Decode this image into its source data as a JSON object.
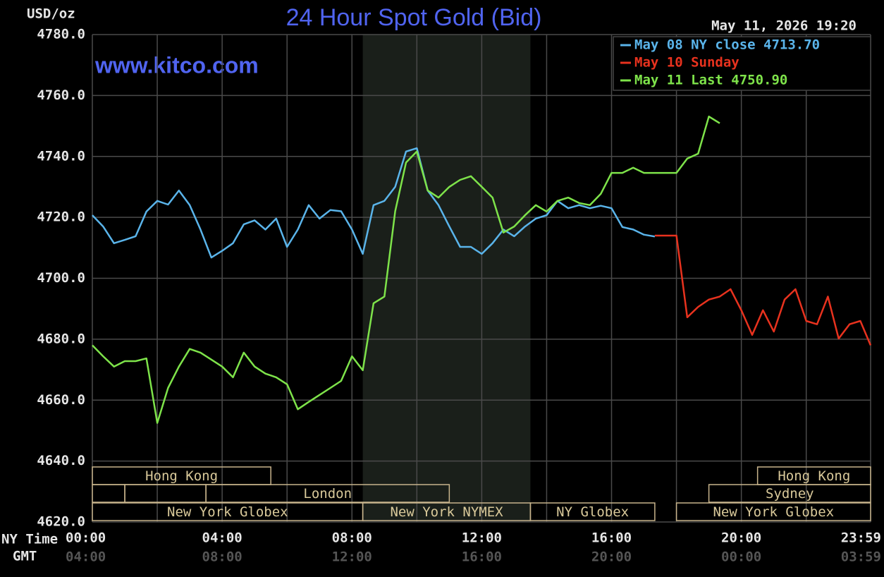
{
  "chart_data": {
    "type": "line",
    "title": "24 Hour Spot Gold (Bid)",
    "y_label": "USD/oz",
    "timestamp": "May 11, 2026 19:20",
    "watermark": "www.kitco.com",
    "x_row_label": "NY Time",
    "x2_row_label": "GMT",
    "x": [
      0,
      20,
      40,
      60,
      80,
      100,
      120,
      140,
      160,
      180,
      200,
      220,
      240,
      260,
      280,
      300,
      320,
      340,
      360,
      380,
      400,
      420,
      440,
      460,
      480,
      500,
      520,
      540,
      560,
      580,
      600,
      620,
      640,
      660,
      680,
      700,
      720,
      740,
      760,
      780,
      800,
      820,
      840,
      860,
      880,
      900,
      920,
      940,
      960,
      980,
      1000,
      1020,
      1040,
      1060,
      1080,
      1100,
      1120,
      1140,
      1160,
      1180,
      1200,
      1220,
      1240,
      1260,
      1280,
      1300,
      1320,
      1340,
      1360,
      1380,
      1400,
      1420,
      1439
    ],
    "series": [
      {
        "name": "May 08 NY close 4713.70",
        "color": "#5ab4ea",
        "values": [
          4720.7,
          4717,
          4711.5,
          4712.6,
          4713.8,
          4721.9,
          4725.4,
          4724.2,
          4728.8,
          4724,
          4716,
          4706.8,
          4709,
          4711.5,
          4717.7,
          4719,
          4716,
          4719.6,
          4710.3,
          4716,
          4724,
          4719.6,
          4722.4,
          4722,
          4716,
          4708,
          4724,
          4725.4,
          4730,
          4741.6,
          4742.7,
          4728.8,
          4724,
          4717,
          4710.3,
          4710.3,
          4708,
          4711.5,
          4716,
          4713.8,
          4717,
          4719.6,
          4720.7,
          4725.4,
          4723,
          4724,
          4723,
          4723.8,
          4723,
          4716.8,
          4716,
          4714.3,
          4713.7,
          null,
          null,
          null,
          null,
          null,
          null,
          null,
          null,
          null,
          null,
          null,
          null,
          null,
          null,
          null,
          null,
          null,
          null,
          null,
          null
        ]
      },
      {
        "name": "May 10 Sunday",
        "color": "#e8321e",
        "values": [
          null,
          null,
          null,
          null,
          null,
          null,
          null,
          null,
          null,
          null,
          null,
          null,
          null,
          null,
          null,
          null,
          null,
          null,
          null,
          null,
          null,
          null,
          null,
          null,
          null,
          null,
          null,
          null,
          null,
          null,
          null,
          null,
          null,
          null,
          null,
          null,
          null,
          null,
          null,
          null,
          null,
          null,
          null,
          null,
          null,
          null,
          null,
          null,
          null,
          null,
          null,
          null,
          4714,
          4714,
          4714,
          4687.2,
          4690.6,
          4693,
          4694,
          4696.4,
          4689.5,
          4681.4,
          4689.5,
          4682.5,
          4693,
          4696.4,
          4686,
          4684.9,
          4694,
          4680.2,
          4684.9,
          4686,
          4678
        ]
      },
      {
        "name": "May 11 Last 4750.90",
        "color": "#7ee34a",
        "values": [
          4678,
          4674.4,
          4671,
          4672.8,
          4672.8,
          4673.7,
          4652.5,
          4664,
          4671,
          4676.8,
          4675.6,
          4673.3,
          4671,
          4667.5,
          4675.6,
          4671,
          4668.7,
          4667.5,
          4665.2,
          4657,
          4659.4,
          4661.7,
          4664,
          4666.3,
          4674.4,
          4669.8,
          4691.8,
          4694,
          4722,
          4738,
          4741.6,
          4728.8,
          4726.5,
          4730,
          4732.3,
          4733.5,
          4730,
          4726.5,
          4715,
          4717,
          4720.7,
          4724,
          4721.9,
          4725.4,
          4726.5,
          4724.7,
          4724,
          4727.7,
          4734.6,
          4734.6,
          4736.3,
          4734.6,
          4734.6,
          4734.6,
          4734.6,
          4739.3,
          4740.9,
          4753.1,
          4750.9,
          null,
          null,
          null,
          null,
          null,
          null,
          null,
          null,
          null,
          null,
          null,
          null,
          null,
          null
        ]
      }
    ],
    "xlim": [
      0,
      1439
    ],
    "ylim": [
      4620,
      4780
    ],
    "xticks": [
      {
        "value": 0,
        "label": "00:00"
      },
      {
        "value": 240,
        "label": "04:00"
      },
      {
        "value": 480,
        "label": "08:00"
      },
      {
        "value": 720,
        "label": "12:00"
      },
      {
        "value": 960,
        "label": "16:00"
      },
      {
        "value": 1200,
        "label": "20:00"
      },
      {
        "value": 1439,
        "label": "23:59"
      }
    ],
    "xticks_gmt": [
      "04:00",
      "08:00",
      "12:00",
      "16:00",
      "20:00",
      "00:00",
      "03:59"
    ],
    "xgrid": [
      0,
      120,
      240,
      360,
      480,
      600,
      720,
      840,
      960,
      1080,
      1200,
      1320,
      1439
    ],
    "yticks": [
      {
        "value": 4620,
        "label": "4620.0"
      },
      {
        "value": 4640,
        "label": "4640.0"
      },
      {
        "value": 4660,
        "label": "4660.0"
      },
      {
        "value": 4680,
        "label": "4680.0"
      },
      {
        "value": 4700,
        "label": "4700.0"
      },
      {
        "value": 4720,
        "label": "4720.0"
      },
      {
        "value": 4740,
        "label": "4740.0"
      },
      {
        "value": 4760,
        "label": "4760.0"
      },
      {
        "value": 4780,
        "label": "4780.0"
      }
    ],
    "grid": true,
    "legend": "top-right",
    "shade": [
      500,
      810
    ],
    "sessions": [
      {
        "label": "Hong Kong",
        "start": 0,
        "end": 330,
        "row": 0
      },
      {
        "label": "Hong Kong",
        "start": 1230,
        "end": 1439,
        "row": 0
      },
      {
        "label": null,
        "start": 0,
        "end": 60,
        "row": 1
      },
      {
        "label": null,
        "start": 60,
        "end": 210,
        "row": 1
      },
      {
        "label": "London",
        "start": 210,
        "end": 660,
        "row": 1
      },
      {
        "label": "Sydney",
        "start": 1140,
        "end": 1439,
        "row": 1
      },
      {
        "label": "New York Globex",
        "start": 0,
        "end": 500,
        "row": 2
      },
      {
        "label": "New York NYMEX",
        "start": 500,
        "end": 810,
        "row": 2
      },
      {
        "label": "NY Globex",
        "start": 810,
        "end": 1040,
        "row": 2
      },
      {
        "label": "New York Globex",
        "start": 1080,
        "end": 1439,
        "row": 2
      }
    ]
  }
}
